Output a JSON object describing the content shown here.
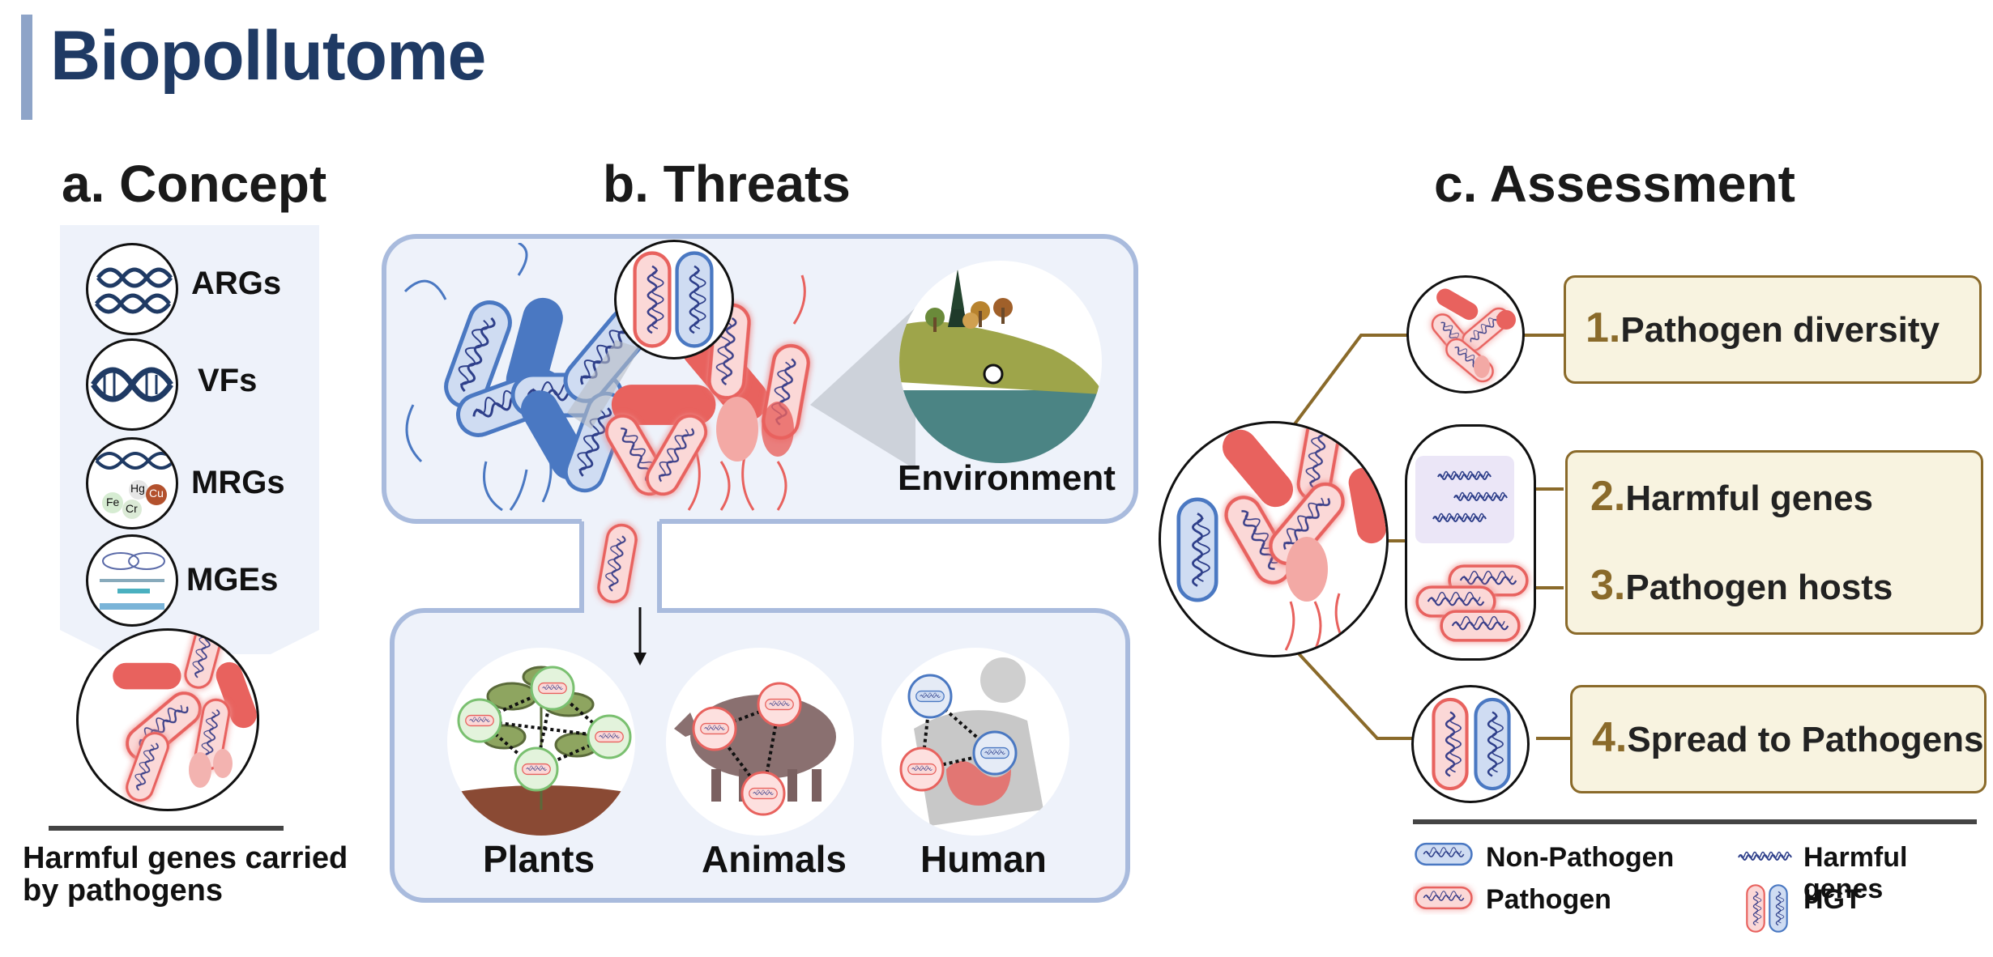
{
  "page": {
    "title": "Biopollutome"
  },
  "concept": {
    "heading": "a. Concept",
    "items": [
      {
        "label": "ARGs",
        "icon": "dna-strands-icon"
      },
      {
        "label": "VFs",
        "icon": "dna-helix-icon"
      },
      {
        "label": "MRGs",
        "icon": "metals-icon",
        "metals": [
          "Hg",
          "Cu",
          "Fe",
          "Cr"
        ]
      },
      {
        "label": "MGEs",
        "icon": "mobile-element-icon"
      }
    ],
    "caption_line1": "Harmful genes carried",
    "caption_line2": "by pathogens"
  },
  "threats": {
    "heading": "b. Threats",
    "environment_label": "Environment",
    "hosts": [
      {
        "label": "Plants"
      },
      {
        "label": "Animals"
      },
      {
        "label": "Human"
      }
    ]
  },
  "assessment": {
    "heading": "c. Assessment",
    "items": [
      {
        "num": "1.",
        "label": "Pathogen diversity"
      },
      {
        "num": "2.",
        "label": "Harmful genes"
      },
      {
        "num": "3.",
        "label": "Pathogen hosts"
      },
      {
        "num": "4.",
        "label": "Spread to Pathogens"
      }
    ]
  },
  "legend": {
    "non_pathogen": "Non-Pathogen",
    "pathogen": "Pathogen",
    "harmful_genes": "Harmful genes",
    "hgt": "HGT"
  },
  "colors": {
    "title": "#1f3a64",
    "non_pathogen": "#4a78c2",
    "pathogen": "#e8625e",
    "panel": "#eef2fa",
    "panel_border": "#a9bbdd",
    "accent_brown": "#8a6a2a",
    "box_fill": "#f8f3e0"
  }
}
